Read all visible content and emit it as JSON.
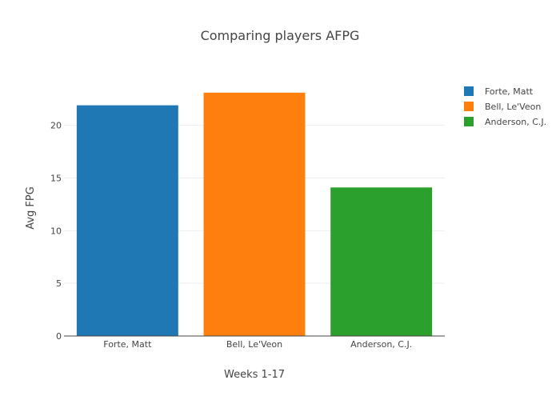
{
  "chart_data": {
    "type": "bar",
    "title": "Comparing players AFPG",
    "xlabel": "Weeks 1-17",
    "ylabel": "Avg FPG",
    "categories": [
      "Forte, Matt",
      "Bell, Le'Veon",
      "Anderson, C.J."
    ],
    "series": [
      {
        "name": "Forte, Matt",
        "category": "Forte, Matt",
        "value": 21.9,
        "color": "#1f77b4"
      },
      {
        "name": "Bell, Le'Veon",
        "category": "Bell, Le'Veon",
        "value": 23.1,
        "color": "#ff7f0e"
      },
      {
        "name": "Anderson, C.J.",
        "category": "Anderson, C.J.",
        "value": 14.1,
        "color": "#2ca02c"
      }
    ],
    "yticks": [
      0,
      5,
      10,
      15,
      20
    ],
    "ylim": [
      0,
      24.3
    ],
    "grid": true,
    "legend_position": "top-right"
  }
}
